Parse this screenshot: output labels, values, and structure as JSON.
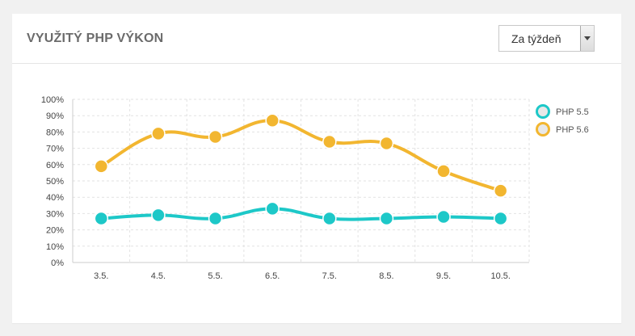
{
  "card": {
    "title": "VYUŽITÝ PHP VÝKON",
    "period_select": {
      "value": "Za týždeň"
    }
  },
  "chart_data": {
    "type": "line",
    "title": "",
    "xlabel": "",
    "ylabel": "",
    "categories": [
      "3.5.",
      "4.5.",
      "5.5.",
      "6.5.",
      "7.5.",
      "8.5.",
      "9.5.",
      "10.5."
    ],
    "yticks": [
      "0%",
      "10%",
      "20%",
      "30%",
      "40%",
      "50%",
      "60%",
      "70%",
      "80%",
      "90%",
      "100%"
    ],
    "ylim": [
      0,
      100
    ],
    "grid": true,
    "legend_position": "right",
    "series": [
      {
        "name": "PHP 5.5",
        "color": "#1dc8c8",
        "values": [
          27,
          29,
          27,
          33,
          27,
          27,
          28,
          27
        ]
      },
      {
        "name": "PHP 5.6",
        "color": "#f2b630",
        "values": [
          59,
          79,
          77,
          87,
          74,
          73,
          56,
          44
        ]
      }
    ]
  }
}
